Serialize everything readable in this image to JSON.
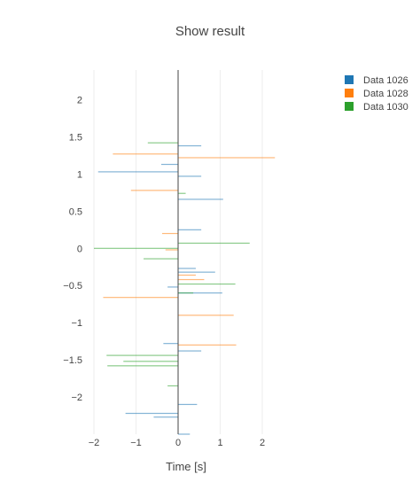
{
  "chart_data": {
    "type": "bar",
    "orientation": "horizontal",
    "title": "Show result",
    "xlabel": "Time [s]",
    "ylabel": "",
    "xlim": [
      -2.0,
      2.4
    ],
    "ylim": [
      -2.5,
      2.4
    ],
    "x_ticks": [
      -2,
      -1,
      0,
      1,
      2
    ],
    "x_tick_labels": [
      "−2",
      "−1",
      "0",
      "1",
      "2"
    ],
    "y_ticks": [
      2,
      1.5,
      1,
      0.5,
      0,
      -0.5,
      -1,
      -1.5,
      -2
    ],
    "y_tick_labels": [
      "2",
      "1.5",
      "1",
      "0.5",
      "0",
      "−0.5",
      "−1",
      "−1.5",
      "−2"
    ],
    "grid": true,
    "legend_position": "top-right",
    "colors": {
      "Data 1026": "#1f77b4",
      "Data 1028": "#ff7f0e",
      "Data 1030": "#2ca02c"
    },
    "series": [
      {
        "name": "Data 1026",
        "points": [
          {
            "y": 1.38,
            "x": 0.55
          },
          {
            "y": 1.13,
            "x": -0.4
          },
          {
            "y": 1.03,
            "x": -1.9
          },
          {
            "y": 0.97,
            "x": 0.55
          },
          {
            "y": 0.66,
            "x": 1.07
          },
          {
            "y": 0.25,
            "x": 0.55
          },
          {
            "y": -0.27,
            "x": 0.42
          },
          {
            "y": -0.32,
            "x": 0.88
          },
          {
            "y": -0.52,
            "x": -0.25
          },
          {
            "y": -0.6,
            "x": 1.05
          },
          {
            "y": -1.28,
            "x": -0.35
          },
          {
            "y": -1.38,
            "x": 0.55
          },
          {
            "y": -2.1,
            "x": 0.45
          },
          {
            "y": -2.22,
            "x": -1.25
          },
          {
            "y": -2.27,
            "x": -0.58
          },
          {
            "y": -2.5,
            "x": 0.28
          }
        ]
      },
      {
        "name": "Data 1028",
        "points": [
          {
            "y": 1.27,
            "x": -1.55
          },
          {
            "y": 1.22,
            "x": 2.3
          },
          {
            "y": 0.78,
            "x": -1.12
          },
          {
            "y": 0.2,
            "x": -0.38
          },
          {
            "y": -0.02,
            "x": -0.3
          },
          {
            "y": -0.36,
            "x": 0.42
          },
          {
            "y": -0.42,
            "x": 0.62
          },
          {
            "y": -0.66,
            "x": -1.78
          },
          {
            "y": -0.9,
            "x": 1.32
          },
          {
            "y": -1.3,
            "x": 1.38
          }
        ]
      },
      {
        "name": "Data 1030",
        "points": [
          {
            "y": 1.42,
            "x": -0.72
          },
          {
            "y": 0.74,
            "x": 0.18
          },
          {
            "y": 0.07,
            "x": 1.7
          },
          {
            "y": 0.0,
            "x": -2.0
          },
          {
            "y": -0.14,
            "x": -0.82
          },
          {
            "y": -0.48,
            "x": 1.36
          },
          {
            "y": -0.6,
            "x": 0.36
          },
          {
            "y": -1.44,
            "x": -1.7
          },
          {
            "y": -1.52,
            "x": -1.3
          },
          {
            "y": -1.58,
            "x": -1.68
          },
          {
            "y": -1.85,
            "x": -0.25
          }
        ]
      }
    ]
  }
}
